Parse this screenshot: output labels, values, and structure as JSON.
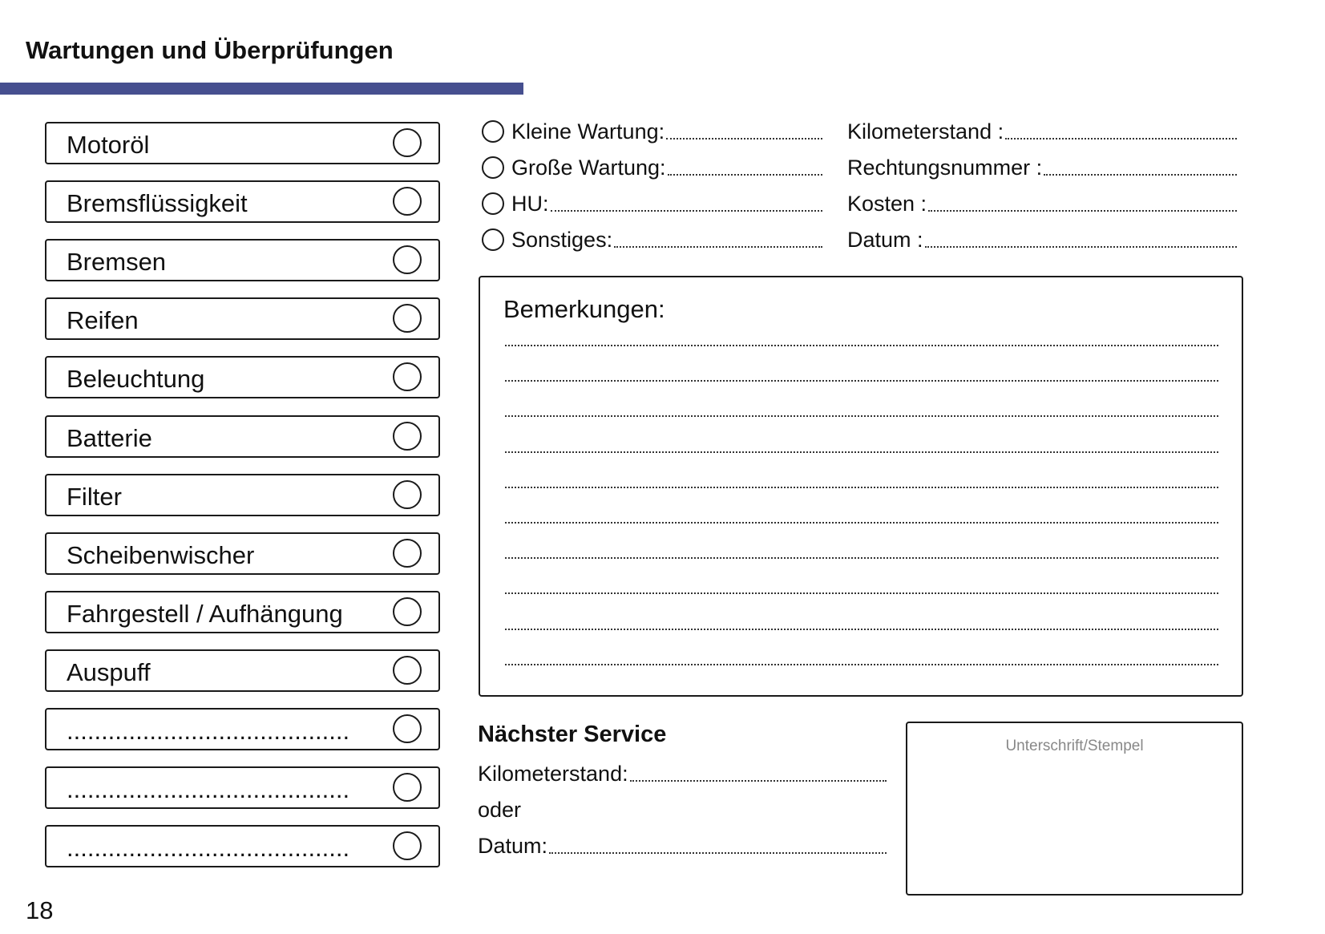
{
  "header": {
    "title": "Wartungen und Überprüfungen",
    "accent_color": "#464f8f"
  },
  "checklist": [
    "Motoröl",
    "Bremsflüssigkeit",
    "Bremsen",
    "Reifen",
    "Beleuchtung",
    "Batterie",
    "Filter",
    "Scheibenwischer",
    "Fahrgestell / Aufhängung",
    "Auspuff",
    ".........................................",
    ".........................................",
    "........................................."
  ],
  "service_types": [
    "Kleine Wartung:",
    "Große Wartung:",
    "HU:",
    "Sonstiges:"
  ],
  "service_fields": [
    "Kilometerstand :",
    "Rechtungsnummer :",
    "Kosten :",
    "Datum :"
  ],
  "remarks": {
    "title": "Bemerkungen:"
  },
  "next_service": {
    "title": "Nächster Service",
    "mileage_label": "Kilometerstand:",
    "or_label": "oder",
    "date_label": "Datum:"
  },
  "stamp": {
    "label": "Unterschrift/Stempel"
  },
  "page_number": "18"
}
